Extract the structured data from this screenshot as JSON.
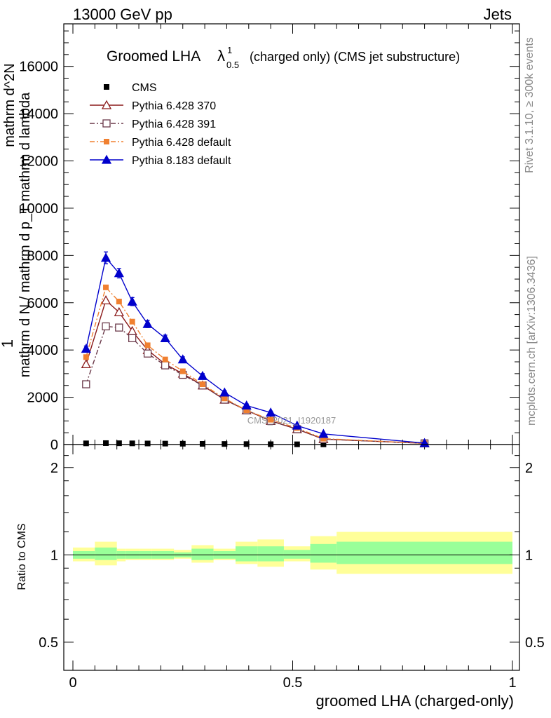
{
  "header": {
    "left": "13000 GeV pp",
    "right": "Jets"
  },
  "chart_data": {
    "type": "line",
    "title": "Groomed LHA",
    "title_symbol": "λ",
    "title_sup": "1",
    "title_sub": "0.5",
    "title_suffix": "(charged only) (CMS jet substructure)",
    "xlabel": "groomed LHA (charged-only)",
    "ylabel_top": "1",
    "ylabel_num": "mathrm d^2N",
    "ylabel_den": "mathrm d N / mathrm d p_T mathrm d lambda",
    "xlim": [
      0,
      1
    ],
    "ylim": [
      0,
      17800
    ],
    "x_ticks": [
      0,
      0.5,
      1
    ],
    "x_tick_labels": [
      "0",
      "0.5",
      "1"
    ],
    "y_ticks": [
      0,
      2000,
      4000,
      6000,
      8000,
      10000,
      12000,
      14000,
      16000
    ],
    "y_tick_labels": [
      "0",
      "2000",
      "4000",
      "6000",
      "8000",
      "10000",
      "12000",
      "14000",
      "16000"
    ],
    "watermark": "CMS_2021_I1920187",
    "right_label_top": "Rivet 3.1.10, ≥ 300k events",
    "right_label_bottom": "mcplots.cern.ch [arXiv:1306.3436]",
    "legend_position": "top-left",
    "bin_edges": [
      0.0,
      0.05,
      0.1,
      0.12,
      0.15,
      0.18,
      0.23,
      0.27,
      0.32,
      0.37,
      0.42,
      0.48,
      0.54,
      0.6,
      1.0
    ],
    "x_centers": [
      0.03,
      0.075,
      0.105,
      0.135,
      0.17,
      0.21,
      0.25,
      0.295,
      0.345,
      0.395,
      0.45,
      0.51,
      0.57,
      0.8
    ],
    "series": [
      {
        "name": "CMS",
        "values": [
          50,
          60,
          55,
          50,
          45,
          40,
          35,
          30,
          25,
          20,
          15,
          10,
          8,
          3
        ]
      },
      {
        "name": "Pythia 6.428 370",
        "color": "#8b1a1a",
        "values": [
          3400,
          6100,
          5600,
          4800,
          4000,
          3400,
          3000,
          2500,
          1900,
          1450,
          1000,
          650,
          230,
          50
        ]
      },
      {
        "name": "Pythia 6.428 391",
        "color": "#6b3a4a",
        "values": [
          2550,
          5000,
          4950,
          4500,
          3850,
          3350,
          2950,
          2500,
          1900,
          1450,
          1000,
          650,
          230,
          50
        ]
      },
      {
        "name": "Pythia 6.428 default",
        "color": "#f08030",
        "values": [
          3700,
          6650,
          6050,
          5200,
          4200,
          3600,
          3100,
          2550,
          1950,
          1450,
          1050,
          700,
          250,
          50
        ]
      },
      {
        "name": "Pythia 8.183 default",
        "color": "#0000cc",
        "errors": [
          120,
          250,
          200,
          170,
          150,
          130,
          110,
          100,
          80,
          70,
          60,
          50,
          30,
          10
        ],
        "values": [
          4050,
          7900,
          7250,
          6050,
          5100,
          4500,
          3600,
          2900,
          2200,
          1650,
          1350,
          800,
          450,
          60
        ]
      }
    ],
    "ratio": {
      "ylabel": "Ratio to CMS",
      "ylim": [
        0.4,
        2.4
      ],
      "scale": "log",
      "y_ticks": [
        0.5,
        1,
        2
      ],
      "y_tick_labels": [
        "0.5",
        "1",
        "2"
      ],
      "band_stat": [
        [
          0.97,
          1.03
        ],
        [
          0.96,
          1.06
        ],
        [
          0.97,
          1.03
        ],
        [
          0.97,
          1.03
        ],
        [
          0.97,
          1.03
        ],
        [
          0.97,
          1.03
        ],
        [
          0.98,
          1.02
        ],
        [
          0.96,
          1.05
        ],
        [
          0.97,
          1.03
        ],
        [
          0.95,
          1.07
        ],
        [
          0.95,
          1.07
        ],
        [
          0.97,
          1.04
        ],
        [
          0.94,
          1.09
        ],
        [
          0.93,
          1.11
        ]
      ],
      "band_total": [
        [
          0.95,
          1.06
        ],
        [
          0.92,
          1.11
        ],
        [
          0.95,
          1.05
        ],
        [
          0.96,
          1.05
        ],
        [
          0.96,
          1.05
        ],
        [
          0.96,
          1.05
        ],
        [
          0.97,
          1.04
        ],
        [
          0.94,
          1.08
        ],
        [
          0.96,
          1.05
        ],
        [
          0.93,
          1.11
        ],
        [
          0.91,
          1.13
        ],
        [
          0.95,
          1.07
        ],
        [
          0.89,
          1.16
        ],
        [
          0.86,
          1.2
        ]
      ]
    }
  }
}
